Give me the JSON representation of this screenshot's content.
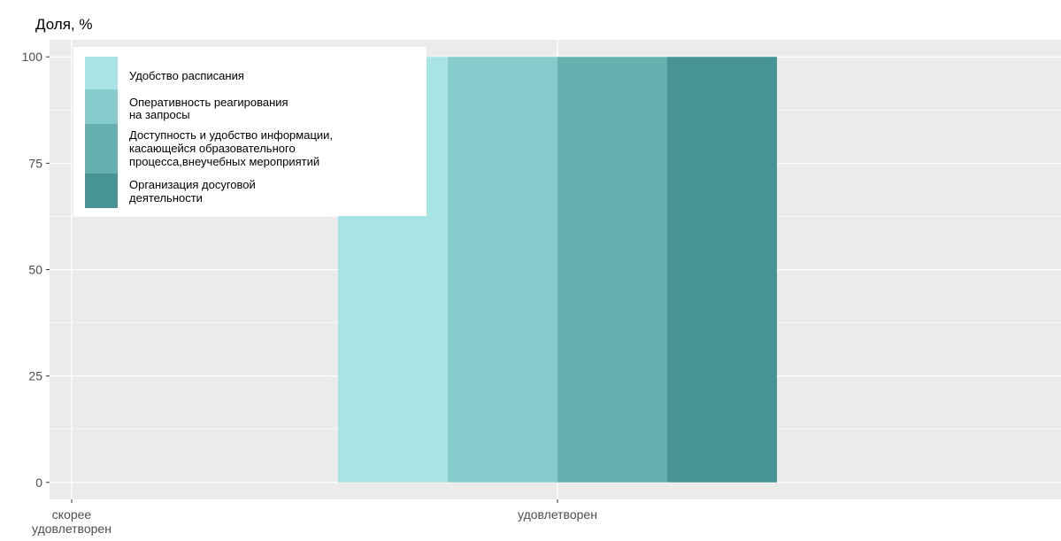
{
  "chart_data": {
    "type": "bar",
    "ylabel": "Доля, %",
    "xlabel": "",
    "ylim": [
      -4,
      104
    ],
    "yticks": [
      0,
      25,
      50,
      75,
      100
    ],
    "categories": [
      {
        "label_lines": [
          "скорее",
          "удовлетворен"
        ]
      },
      {
        "label_lines": [
          "удовлетворен"
        ]
      }
    ],
    "series": [
      {
        "name_lines": [
          "Удобство расписания"
        ],
        "color": "#a8e4e4",
        "values": [
          0,
          100
        ]
      },
      {
        "name_lines": [
          "Оперативность реагирования",
          "на запросы"
        ],
        "color": "#87cccc",
        "values": [
          0,
          100
        ]
      },
      {
        "name_lines": [
          "Доступность и удобство информации,",
          "касающейся образовательного",
          "процесса,внеучебных мероприятий"
        ],
        "color": "#66b0b0",
        "values": [
          0,
          100
        ]
      },
      {
        "name_lines": [
          "Организация досуговой",
          "деятельности"
        ],
        "color": "#469494",
        "values": [
          0,
          100
        ]
      }
    ],
    "grid": true,
    "legend_position": "top-left, inside plot",
    "panel_background": "#ebebeb",
    "grid_color": "#ffffff"
  }
}
